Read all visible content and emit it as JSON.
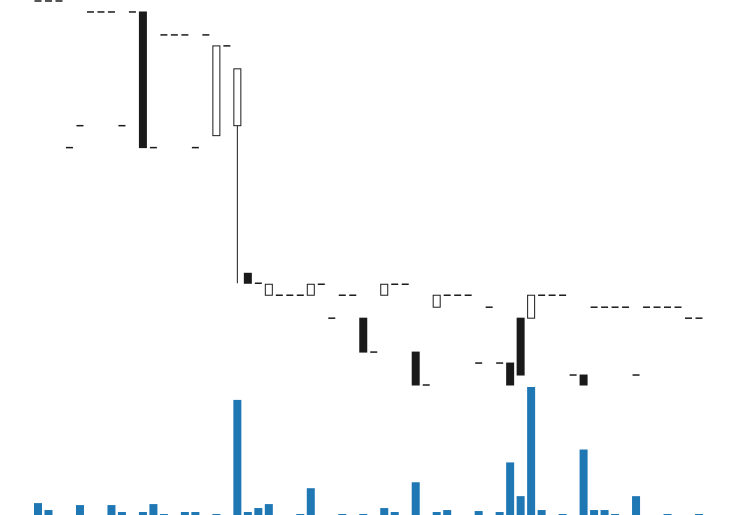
{
  "chart_data": {
    "type": "candlestick",
    "open": [
      385,
      385,
      385,
      238,
      260,
      374,
      374,
      374,
      260,
      374,
      374,
      238,
      351,
      351,
      351,
      238,
      351,
      250,
      340,
      260,
      112,
      102,
      90,
      90,
      90,
      90,
      90,
      101,
      67,
      90,
      90,
      67,
      33,
      90,
      101,
      101,
      33,
      0,
      78,
      90,
      90,
      90,
      22,
      78,
      22,
      22,
      67,
      67,
      90,
      90,
      90,
      10,
      10,
      78,
      78,
      78,
      78,
      10,
      78,
      78,
      78,
      78,
      67,
      67
    ],
    "high": [
      385,
      385,
      385,
      238,
      260,
      374,
      374,
      374,
      260,
      374,
      374,
      238,
      351,
      351,
      351,
      238,
      351,
      340,
      340,
      317,
      112,
      102,
      101,
      90,
      90,
      90,
      101,
      101,
      67,
      90,
      90,
      67,
      33,
      101,
      101,
      101,
      33,
      0,
      90,
      90,
      90,
      90,
      22,
      78,
      22,
      22,
      67,
      90,
      90,
      90,
      90,
      10,
      10,
      78,
      78,
      78,
      78,
      10,
      78,
      78,
      78,
      78,
      67,
      67
    ],
    "low": [
      385,
      385,
      385,
      238,
      260,
      374,
      374,
      374,
      260,
      374,
      238,
      238,
      351,
      351,
      351,
      238,
      351,
      250,
      340,
      102,
      102,
      102,
      90,
      90,
      90,
      90,
      90,
      101,
      67,
      90,
      90,
      33,
      33,
      90,
      101,
      101,
      0,
      0,
      78,
      90,
      90,
      90,
      22,
      78,
      22,
      0,
      10,
      67,
      90,
      90,
      90,
      10,
      0,
      78,
      78,
      78,
      78,
      10,
      78,
      78,
      78,
      78,
      67,
      67
    ],
    "close": [
      385,
      385,
      385,
      238,
      260,
      374,
      374,
      374,
      260,
      374,
      238,
      238,
      351,
      351,
      351,
      238,
      351,
      340,
      340,
      317,
      102,
      102,
      101,
      90,
      90,
      90,
      101,
      101,
      67,
      90,
      90,
      33,
      33,
      101,
      101,
      101,
      0,
      0,
      90,
      90,
      90,
      90,
      22,
      78,
      22,
      0,
      10,
      90,
      90,
      90,
      90,
      10,
      0,
      78,
      78,
      78,
      78,
      10,
      78,
      78,
      78,
      78,
      67,
      67
    ],
    "volume": [
      12,
      5,
      0,
      0,
      10,
      0,
      0,
      10,
      3,
      0,
      3,
      11,
      1,
      0,
      3,
      3,
      0,
      1,
      0,
      116,
      3,
      7,
      11,
      0,
      0,
      1,
      27,
      0,
      0,
      1,
      0,
      1,
      0,
      7,
      3,
      0,
      33,
      0,
      3,
      5,
      0,
      0,
      4,
      0,
      3,
      53,
      19,
      129,
      5,
      0,
      1,
      0,
      66,
      5,
      5,
      1,
      0,
      19,
      0,
      0,
      1,
      0,
      0,
      1
    ],
    "ylim": [
      0,
      385
    ],
    "y2lim": [
      0,
      130
    ],
    "up_color": "#ffffff",
    "down_color": "#1a1a1a",
    "volume_color": "#1f77b4"
  }
}
